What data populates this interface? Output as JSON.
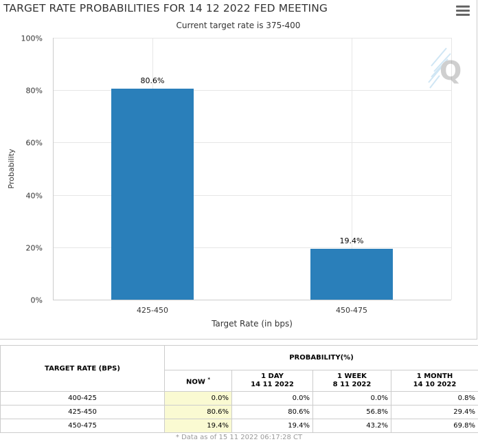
{
  "header": {
    "title": "TARGET RATE PROBABILITIES FOR 14 12 2022 FED MEETING",
    "subtitle": "Current target rate is 375-400",
    "menu_icon": "hamburger-menu-icon",
    "watermark_icon": "quikstrike-q-logo"
  },
  "chart_data": {
    "type": "bar",
    "title": "TARGET RATE PROBABILITIES FOR 14 12 2022 FED MEETING",
    "subtitle": "Current target rate is 375-400",
    "categories": [
      "425-450",
      "450-475"
    ],
    "values": [
      80.6,
      19.4
    ],
    "data_labels": [
      "80.6%",
      "19.4%"
    ],
    "xlabel": "Target Rate (in bps)",
    "ylabel": "Probability",
    "ylim": [
      0,
      100
    ],
    "y_ticks": [
      0,
      20,
      40,
      60,
      80,
      100
    ],
    "y_tick_labels": [
      "0%",
      "20%",
      "40%",
      "60%",
      "80%",
      "100%"
    ],
    "grid": true,
    "bar_color": "#2a7fba",
    "grid_color": "#e6e6e6"
  },
  "table": {
    "rate_header": "TARGET RATE (BPS)",
    "prob_header": "PROBABILITY(%)",
    "columns": [
      {
        "line1": "NOW",
        "line2": "",
        "mark": "*"
      },
      {
        "line1": "1 DAY",
        "line2": "14 11 2022",
        "mark": ""
      },
      {
        "line1": "1 WEEK",
        "line2": "8 11 2022",
        "mark": ""
      },
      {
        "line1": "1 MONTH",
        "line2": "14 10 2022",
        "mark": ""
      }
    ],
    "rows": [
      {
        "rate": "400-425",
        "values": [
          "0.0%",
          "0.0%",
          "0.0%",
          "0.8%"
        ]
      },
      {
        "rate": "425-450",
        "values": [
          "80.6%",
          "80.6%",
          "56.8%",
          "29.4%"
        ]
      },
      {
        "rate": "450-475",
        "values": [
          "19.4%",
          "19.4%",
          "43.2%",
          "69.8%"
        ]
      }
    ],
    "highlight_color": "#fafad2"
  },
  "footnote": "* Data as of 15 11 2022 06:17:28 CT"
}
